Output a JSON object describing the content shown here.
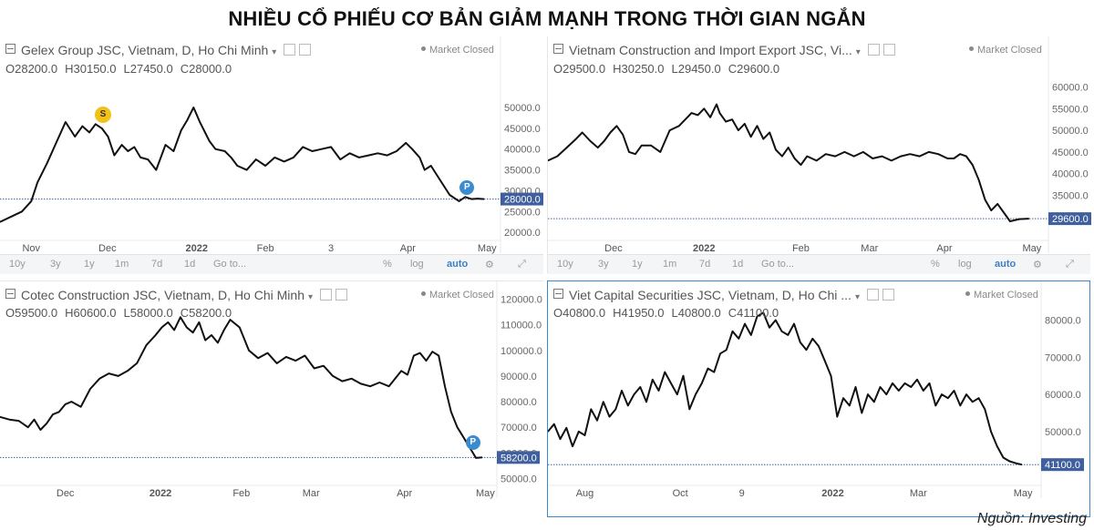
{
  "title": "NHIỀU CỔ PHIẾU CƠ BẢN GIẢM MẠNH TRONG THỜI GIAN NGẮN",
  "source": "Nguồn: Investing",
  "colors": {
    "line": "#111111",
    "last_price_tag": "#3f5f9e",
    "p_marker": "#3b8bd0",
    "s_marker": "#f2c21b",
    "axis_text": "#666666"
  },
  "toolbar": [
    "10y",
    "3y",
    "1y",
    "1m",
    "7d",
    "1d",
    "Go to...",
    "%",
    "log",
    "auto"
  ],
  "chart_data": [
    {
      "type": "line",
      "title": "Gelex Group JSC, Vietnam, D, Ho Chi Minh",
      "status": "Market Closed",
      "ohlc": {
        "open": "O28200.0",
        "high": "H30150.0",
        "low": "L27450.0",
        "close": "C28000.0"
      },
      "last_price": "28000.0",
      "last_value": 28000,
      "ylim": [
        18500,
        57000
      ],
      "xlim": [
        0,
        80
      ],
      "y_ticks": [
        {
          "value": 20000,
          "label": "20000.0"
        },
        {
          "value": 25000,
          "label": "25000.0"
        },
        {
          "value": 30000,
          "label": "30000.0"
        },
        {
          "value": 35000,
          "label": "35000.0"
        },
        {
          "value": 40000,
          "label": "40000.0"
        },
        {
          "value": 45000,
          "label": "45000.0"
        },
        {
          "value": 50000,
          "label": "50000.0"
        }
      ],
      "x_ticks": [
        {
          "x": 5.0,
          "label": "Nov"
        },
        {
          "x": 17.2,
          "label": "Dec"
        },
        {
          "x": 31.5,
          "label": "2022",
          "bold": true
        },
        {
          "x": 42.5,
          "label": "Feb"
        },
        {
          "x": 53.0,
          "label": "3"
        },
        {
          "x": 65.3,
          "label": "Apr"
        },
        {
          "x": 78.0,
          "label": "May"
        }
      ],
      "markers": [
        {
          "label": "S",
          "kind": "s",
          "x": 16.5,
          "y": 48200
        },
        {
          "label": "P",
          "kind": "p",
          "x": 74.8,
          "y": 30700
        }
      ],
      "series": [
        {
          "x": [
            0,
            3.5,
            5,
            6,
            7.5,
            9,
            10.5,
            12,
            13.2,
            14.3,
            15.3,
            16.3,
            17.3,
            18.3,
            19.5,
            20.5,
            21.5,
            22.5,
            23.7,
            25,
            26.5,
            27.8,
            29,
            30,
            31,
            32,
            33.5,
            34.5,
            36,
            37,
            38,
            39.5,
            41,
            42.5,
            44,
            45.5,
            47,
            48.5,
            50,
            51.5,
            53,
            54.5,
            56,
            57.5,
            59,
            60.5,
            62,
            63.5,
            65,
            66,
            67.2,
            68,
            69,
            70.5,
            72,
            73.5,
            74.5,
            75.5,
            76.5,
            77.5
          ],
          "y": [
            22500,
            25000,
            27500,
            32000,
            36500,
            41500,
            46500,
            43000,
            45500,
            44000,
            46000,
            45000,
            43000,
            38500,
            41000,
            39500,
            40500,
            38000,
            37500,
            35000,
            41000,
            39500,
            44500,
            47000,
            50000,
            46500,
            42000,
            40000,
            39500,
            38000,
            36000,
            35000,
            37500,
            36000,
            38000,
            37000,
            38000,
            40500,
            39500,
            40000,
            40500,
            37500,
            39000,
            38000,
            38500,
            39000,
            38500,
            39500,
            41500,
            40000,
            38000,
            35000,
            36000,
            32500,
            29000,
            27500,
            28500,
            28000,
            28100,
            28000
          ]
        }
      ]
    },
    {
      "type": "line",
      "title": "Vietnam Construction and Import Export JSC, Vi...",
      "status": "Market Closed",
      "ohlc": {
        "open": "O29500.0",
        "high": "H30250.0",
        "low": "L29450.0",
        "close": "C29600.0"
      },
      "last_price": "29600.0",
      "last_value": 29600,
      "ylim": [
        25000,
        62000
      ],
      "xlim": [
        0,
        80
      ],
      "y_ticks": [
        {
          "value": 30000,
          "label": "30000.0"
        },
        {
          "value": 35000,
          "label": "35000.0"
        },
        {
          "value": 40000,
          "label": "40000.0"
        },
        {
          "value": 45000,
          "label": "45000.0"
        },
        {
          "value": 50000,
          "label": "50000.0"
        },
        {
          "value": 55000,
          "label": "55000.0"
        },
        {
          "value": 60000,
          "label": "60000.0"
        }
      ],
      "x_ticks": [
        {
          "x": 10.5,
          "label": "Dec"
        },
        {
          "x": 25.0,
          "label": "2022",
          "bold": true
        },
        {
          "x": 40.5,
          "label": "Feb"
        },
        {
          "x": 51.5,
          "label": "Mar"
        },
        {
          "x": 63.5,
          "label": "Apr"
        },
        {
          "x": 77.5,
          "label": "May"
        }
      ],
      "markers": [],
      "series": [
        {
          "x": [
            0,
            1.5,
            3,
            4.5,
            5.5,
            6.8,
            8,
            9,
            10,
            11,
            12,
            13,
            14,
            15,
            16.5,
            18,
            19.5,
            21,
            22,
            23,
            24,
            25,
            26,
            27,
            27.5,
            28.5,
            29.5,
            30.5,
            31.5,
            32.5,
            33.5,
            34.5,
            35.5,
            36.5,
            37.5,
            38.5,
            39.5,
            40.5,
            41.5,
            43,
            44.5,
            46,
            47.5,
            49,
            50.5,
            52,
            53.5,
            55,
            56.5,
            58,
            59.5,
            61,
            62.5,
            64,
            65,
            66,
            67,
            68,
            69,
            70,
            71,
            72,
            73,
            74,
            75.5,
            77
          ],
          "y": [
            43000,
            44000,
            46000,
            48000,
            49500,
            47500,
            46000,
            47500,
            49500,
            51000,
            49000,
            45000,
            44500,
            46500,
            46500,
            45000,
            50000,
            51000,
            52500,
            54000,
            53500,
            55000,
            53000,
            56000,
            54000,
            52000,
            52500,
            50000,
            51500,
            48500,
            51000,
            48000,
            49500,
            45500,
            44000,
            46000,
            43500,
            42000,
            44000,
            43000,
            44500,
            44000,
            45000,
            44000,
            45000,
            43500,
            44000,
            43000,
            44000,
            44500,
            44000,
            45000,
            44500,
            43500,
            43500,
            44500,
            44000,
            42000,
            38500,
            34000,
            31500,
            33000,
            31000,
            29000,
            29500,
            29600
          ]
        }
      ]
    },
    {
      "type": "line",
      "title": "Cotec Construction JSC, Vietnam, D, Ho Chi Minh",
      "status": "Market Closed",
      "ohlc": {
        "open": "O59500.0",
        "high": "H60600.0",
        "low": "L58000.0",
        "close": "C58200.0"
      },
      "last_price": "58200.0",
      "last_value": 58200,
      "ylim": [
        48000,
        122000
      ],
      "xlim": [
        0,
        80
      ],
      "y_ticks": [
        {
          "value": 50000,
          "label": "50000.0"
        },
        {
          "value": 60000,
          "label": "60000.0"
        },
        {
          "value": 70000,
          "label": "70000.0"
        },
        {
          "value": 80000,
          "label": "80000.0"
        },
        {
          "value": 90000,
          "label": "90000.0"
        },
        {
          "value": 100000,
          "label": "100000.0"
        },
        {
          "value": 110000,
          "label": "110000.0"
        },
        {
          "value": 120000,
          "label": "120000.0"
        }
      ],
      "x_ticks": [
        {
          "x": 10.5,
          "label": "Dec"
        },
        {
          "x": 25.8,
          "label": "2022",
          "bold": true
        },
        {
          "x": 38.8,
          "label": "Feb"
        },
        {
          "x": 50.0,
          "label": "Mar"
        },
        {
          "x": 65.0,
          "label": "Apr"
        },
        {
          "x": 78.0,
          "label": "May"
        }
      ],
      "markers": [
        {
          "label": "P",
          "kind": "p",
          "x": 76.0,
          "y": 64000
        }
      ],
      "series": [
        {
          "x": [
            0,
            1.5,
            3,
            4.5,
            5.5,
            6.5,
            7.5,
            8.5,
            9.5,
            10.5,
            11.5,
            13,
            14.5,
            16,
            17.5,
            19,
            20.5,
            22,
            23.5,
            25,
            26,
            27,
            28,
            29,
            30,
            31,
            32,
            33,
            34,
            35,
            36,
            37,
            38.5,
            40,
            41.5,
            43,
            44.5,
            46,
            47.5,
            49,
            50.5,
            52,
            53.5,
            55,
            56.5,
            58,
            59.5,
            61,
            62.5,
            63.5,
            64.5,
            65.5,
            66.5,
            67.5,
            68.5,
            69.5,
            70.5,
            71.5,
            72.5,
            73.5,
            74.5,
            75.5,
            76.5,
            77.5
          ],
          "y": [
            74000,
            73000,
            72500,
            70000,
            73000,
            69000,
            71500,
            75000,
            76000,
            79000,
            80000,
            78000,
            85000,
            89000,
            91000,
            90000,
            92000,
            95000,
            102000,
            106000,
            109000,
            111000,
            108000,
            113000,
            109000,
            107000,
            111000,
            104000,
            106000,
            103000,
            108000,
            112000,
            109000,
            100000,
            97000,
            99000,
            95000,
            97500,
            96000,
            98000,
            93000,
            94000,
            90000,
            88000,
            89000,
            87000,
            86000,
            87500,
            86000,
            89000,
            92000,
            90500,
            98000,
            99000,
            96000,
            99500,
            98000,
            86000,
            76000,
            70000,
            66000,
            62000,
            58000,
            58200
          ]
        }
      ]
    },
    {
      "type": "line",
      "title": "Viet Capital Securities JSC, Vietnam, D, Ho Chi ...",
      "status": "Market Closed",
      "ohlc": {
        "open": "O40800.0",
        "high": "H41950.0",
        "low": "L40800.0",
        "close": "C41100.0"
      },
      "last_price": "41100.0",
      "last_value": 41100,
      "ylim": [
        36000,
        87000
      ],
      "xlim": [
        0,
        80
      ],
      "y_ticks": [
        {
          "value": 50000,
          "label": "50000.0"
        },
        {
          "value": 60000,
          "label": "60000.0"
        },
        {
          "value": 70000,
          "label": "70000.0"
        },
        {
          "value": 80000,
          "label": "80000.0"
        }
      ],
      "x_ticks": [
        {
          "x": 6.0,
          "label": "Aug"
        },
        {
          "x": 21.5,
          "label": "Oct"
        },
        {
          "x": 31.5,
          "label": "9"
        },
        {
          "x": 46.3,
          "label": "2022",
          "bold": true
        },
        {
          "x": 60.2,
          "label": "Mar"
        },
        {
          "x": 77.2,
          "label": "May"
        }
      ],
      "markers": [],
      "series": [
        {
          "x": [
            0,
            1,
            2,
            3,
            4,
            5,
            6,
            7,
            8,
            9,
            10,
            11,
            12,
            13,
            14,
            15,
            16,
            17,
            18,
            19,
            20,
            21,
            22,
            23,
            24,
            25,
            26,
            27,
            28,
            29,
            30,
            31,
            32,
            33,
            34,
            35,
            36,
            37,
            38,
            39,
            40,
            41,
            42,
            43,
            44,
            45,
            46,
            47,
            48,
            49,
            50,
            51,
            52,
            53,
            54,
            55,
            56,
            57,
            58,
            59,
            60,
            61,
            62,
            63,
            64,
            65,
            66,
            67,
            68,
            69,
            70,
            71,
            72,
            73,
            74,
            75,
            76,
            77
          ],
          "y": [
            50000,
            52000,
            48000,
            51000,
            46000,
            50000,
            49000,
            56000,
            53000,
            58000,
            54000,
            56000,
            61000,
            57000,
            60000,
            62000,
            58000,
            64000,
            61000,
            66000,
            63000,
            60000,
            65000,
            56000,
            60000,
            63000,
            67000,
            66000,
            71000,
            72000,
            77000,
            75000,
            79000,
            76000,
            81000,
            82000,
            78000,
            80000,
            77000,
            76000,
            79000,
            74000,
            72000,
            75000,
            73000,
            69000,
            65000,
            54000,
            59000,
            57000,
            62000,
            55000,
            60000,
            58000,
            62000,
            60000,
            63000,
            61000,
            63000,
            62000,
            64000,
            61000,
            63000,
            57000,
            60000,
            59000,
            61000,
            57000,
            60000,
            58000,
            59000,
            56000,
            50000,
            46000,
            43000,
            42000,
            41500,
            41100
          ]
        }
      ]
    }
  ]
}
